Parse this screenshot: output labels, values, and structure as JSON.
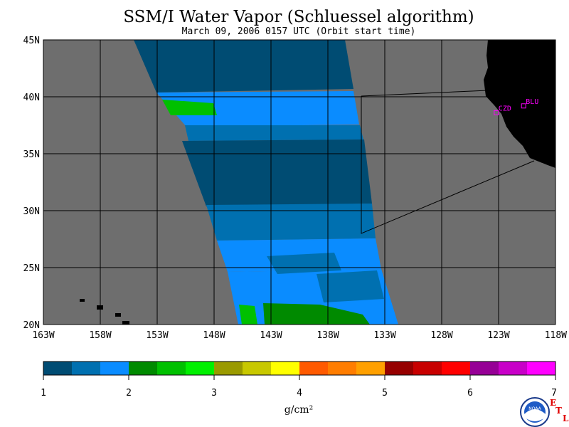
{
  "title": "SSM/I Water Vapor (Schluessel algorithm)",
  "subtitle": "March 09, 2006  0157 UTC  (Orbit start time)",
  "map": {
    "lat_labels": [
      "45N",
      "40N",
      "35N",
      "30N",
      "25N",
      "20N"
    ],
    "lat_values": [
      45,
      40,
      35,
      30,
      25,
      20
    ],
    "lon_labels": [
      "163W",
      "158W",
      "153W",
      "148W",
      "143W",
      "138W",
      "133W",
      "128W",
      "123W",
      "118W"
    ],
    "lon_values": [
      -163,
      -158,
      -153,
      -148,
      -143,
      -138,
      -133,
      -128,
      -123,
      -118
    ],
    "lat_range": [
      20,
      45
    ],
    "lon_range": [
      -163,
      -118
    ],
    "grid": true,
    "background_color": "#6e6e6e",
    "land_color": "#000000",
    "stations": [
      {
        "label": "CZD",
        "lat": 38.6,
        "lon": -123.2
      },
      {
        "label": "BLU",
        "lat": 39.2,
        "lon": -120.8
      }
    ]
  },
  "colorbar": {
    "tick_labels": [
      "1",
      "2",
      "3",
      "4",
      "5",
      "6",
      "7"
    ],
    "unit_label": "g/cm²",
    "min": 1,
    "max": 7,
    "colors": [
      "#004c73",
      "#0070b0",
      "#0a8cff",
      "#008a00",
      "#00c000",
      "#00f000",
      "#9a9a00",
      "#c8c800",
      "#ffff00",
      "#ff5a00",
      "#ff7d00",
      "#ffa000",
      "#960000",
      "#c80000",
      "#ff0000",
      "#960096",
      "#c800c8",
      "#ff00ff"
    ]
  },
  "logo": {
    "noaa_text": "NOAA",
    "etl_letters": [
      "E",
      "T",
      "L"
    ]
  }
}
